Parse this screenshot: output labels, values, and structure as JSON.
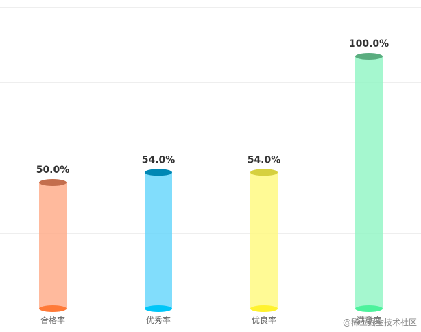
{
  "chart_data": {
    "type": "bar",
    "categories": [
      "合格率",
      "优秀率",
      "优良率",
      "满意度"
    ],
    "values": [
      50.0,
      54.0,
      54.0,
      100.0
    ],
    "value_labels": [
      "50.0%",
      "54.0%",
      "54.0%",
      "100.0%"
    ],
    "ylim": [
      0,
      100
    ],
    "grid": true,
    "colors": {
      "body": [
        "#ffa985",
        "#62d4fb",
        "#fff97a",
        "#8ef5c3"
      ],
      "top": [
        "#c46e4d",
        "#0087b4",
        "#d6d03e",
        "#5aad7f"
      ],
      "bottom": [
        "#ff7a38",
        "#00c6f8",
        "#fff22f",
        "#4df29c"
      ]
    }
  },
  "watermark": "@稀土掘金技术社区"
}
